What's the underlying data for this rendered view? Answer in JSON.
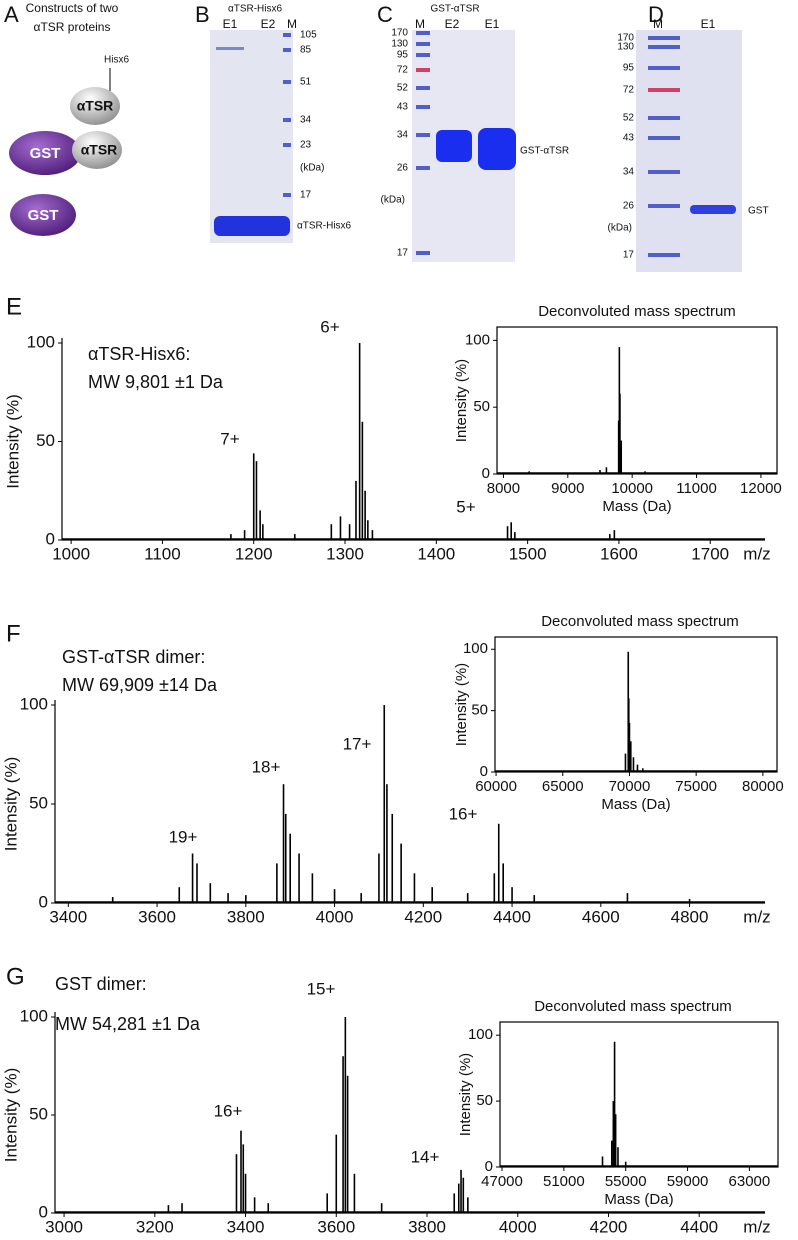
{
  "panels": {
    "A": {
      "letter": "A",
      "title_lines": [
        "Constructs of two",
        "αTSR proteins"
      ],
      "tag": "Hisx6",
      "constructs": [
        [
          "αTSR"
        ],
        [
          "GST",
          "αTSR"
        ],
        [
          "GST"
        ]
      ]
    },
    "B": {
      "letter": "B",
      "title": "αTSR-Hisx6",
      "lanes": [
        "E1",
        "E2",
        "M"
      ],
      "ladder": [
        105,
        85,
        51,
        34,
        23,
        17
      ],
      "unit": "(kDa)",
      "band_label": "αTSR-Hisx6"
    },
    "C": {
      "letter": "C",
      "title": "GST-αTSR",
      "lanes": [
        "M",
        "E2",
        "E1"
      ],
      "ladder": [
        170,
        130,
        95,
        72,
        52,
        43,
        34,
        26,
        17
      ],
      "unit": "(kDa)",
      "band_label": "GST-αTSR"
    },
    "D": {
      "letter": "D",
      "lanes": [
        "M",
        "E1"
      ],
      "ladder": [
        170,
        130,
        95,
        72,
        52,
        43,
        34,
        26,
        17
      ],
      "unit": "(kDa)",
      "band_label": "GST"
    }
  },
  "chart_data": [
    {
      "type": "stem",
      "panel_label": "E",
      "text_lines": [
        "αTSR-Hisx6:",
        "MW 9,801 ±1 Da"
      ],
      "annotations": [
        "7+",
        "6+",
        "5+"
      ],
      "ylabel": "Intensity (%)",
      "xlabel": "m/z",
      "color": "#000000",
      "x": [
        1175,
        1190,
        1200,
        1203,
        1207,
        1210,
        1245,
        1285,
        1295,
        1305,
        1312,
        1316,
        1319,
        1322,
        1325,
        1330,
        1478,
        1482,
        1486,
        1590,
        1595
      ],
      "values": [
        3,
        5,
        44,
        40,
        15,
        8,
        3,
        8,
        12,
        8,
        30,
        100,
        60,
        25,
        10,
        5,
        7,
        9,
        4,
        3,
        5
      ],
      "xlim": [
        990,
        1760
      ],
      "xticks": [
        1000,
        1100,
        1200,
        1300,
        1400,
        1500,
        1600,
        1700
      ],
      "ylim": [
        0,
        100
      ],
      "yticks": [
        0,
        50,
        100
      ]
    },
    {
      "type": "stem",
      "title": "Deconvoluted mass spectrum",
      "ylabel": "Intensity (%)",
      "xlabel": "Mass (Da)",
      "color": "#000000",
      "x": [
        8400,
        9500,
        9600,
        9790,
        9801,
        9810,
        9830,
        10200
      ],
      "values": [
        2,
        3,
        5,
        40,
        95,
        60,
        25,
        2
      ],
      "xlim": [
        7900,
        12250
      ],
      "xticks": [
        8000,
        9000,
        10000,
        11000,
        12000
      ],
      "ylim": [
        0,
        110
      ],
      "yticks": [
        0,
        50,
        100
      ]
    },
    {
      "type": "stem",
      "panel_label": "F",
      "text_lines": [
        "GST-αTSR dimer:",
        "MW 69,909 ±14 Da"
      ],
      "annotations": [
        "19+",
        "18+",
        "17+",
        "16+"
      ],
      "ylabel": "Intensity (%)",
      "xlabel": "m/z",
      "color": "#000000",
      "x": [
        3500,
        3650,
        3680,
        3690,
        3720,
        3760,
        3800,
        3870,
        3885,
        3890,
        3900,
        3920,
        3950,
        4000,
        4060,
        4100,
        4112,
        4118,
        4130,
        4150,
        4180,
        4220,
        4300,
        4360,
        4370,
        4380,
        4400,
        4450,
        4660,
        4800
      ],
      "values": [
        3,
        8,
        25,
        20,
        10,
        5,
        4,
        20,
        60,
        45,
        35,
        25,
        15,
        7,
        5,
        25,
        100,
        60,
        45,
        30,
        15,
        8,
        5,
        15,
        40,
        20,
        8,
        4,
        5,
        2
      ],
      "xlim": [
        3370,
        4970
      ],
      "xticks": [
        3400,
        3600,
        3800,
        4000,
        4200,
        4400,
        4600,
        4800
      ],
      "ylim": [
        0,
        100
      ],
      "yticks": [
        0,
        50,
        100
      ]
    },
    {
      "type": "stem",
      "title": "Deconvoluted mass spectrum",
      "ylabel": "Intensity (%)",
      "xlabel": "Mass (Da)",
      "color": "#000000",
      "x": [
        69700,
        69909,
        69950,
        70000,
        70100,
        70300,
        70600,
        71000
      ],
      "values": [
        15,
        98,
        60,
        40,
        25,
        12,
        6,
        3
      ],
      "xlim": [
        59920,
        81060
      ],
      "xticks": [
        60000,
        65000,
        70000,
        75000,
        80000
      ],
      "ylim": [
        0,
        110
      ],
      "yticks": [
        0,
        50,
        100
      ]
    },
    {
      "type": "stem",
      "panel_label": "G",
      "text_lines": [
        "GST dimer:",
        "MW 54,281 ±1 Da"
      ],
      "annotations": [
        "16+",
        "15+",
        "14+"
      ],
      "ylabel": "Intensity (%)",
      "xlabel": "m/z",
      "color": "#000000",
      "x": [
        3230,
        3260,
        3380,
        3390,
        3395,
        3400,
        3420,
        3450,
        3580,
        3600,
        3615,
        3620,
        3625,
        3640,
        3700,
        3860,
        3870,
        3875,
        3880,
        3890
      ],
      "values": [
        4,
        5,
        30,
        42,
        35,
        20,
        8,
        5,
        10,
        40,
        80,
        100,
        70,
        20,
        5,
        10,
        15,
        22,
        18,
        8
      ],
      "xlim": [
        2980,
        4545
      ],
      "xticks": [
        3000,
        3200,
        3400,
        3600,
        3800,
        4000,
        4200,
        4400
      ],
      "ylim": [
        0,
        100
      ],
      "yticks": [
        0,
        50,
        100
      ]
    },
    {
      "type": "stem",
      "title": "Deconvoluted mass spectrum",
      "ylabel": "Intensity (%)",
      "xlabel": "Mass (Da)",
      "color": "#000000",
      "x": [
        53500,
        54100,
        54200,
        54281,
        54350,
        54500,
        55000
      ],
      "values": [
        8,
        20,
        50,
        95,
        40,
        15,
        4
      ],
      "xlim": [
        46870,
        64850
      ],
      "xticks": [
        47000,
        51000,
        55000,
        59000,
        63000
      ],
      "ylim": [
        0,
        110
      ],
      "yticks": [
        0,
        50,
        100
      ]
    }
  ]
}
